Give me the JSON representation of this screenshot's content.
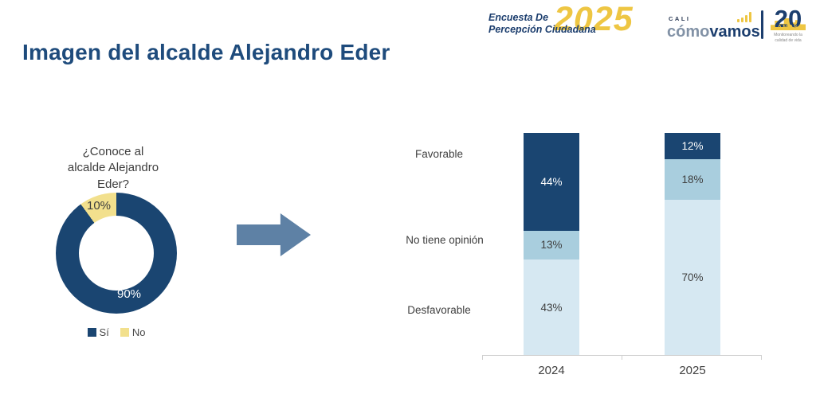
{
  "header": {
    "title": "Imagen del alcalde Alejandro Eder",
    "encuesta_logo": {
      "line1": "Encuesta De",
      "line2": "Percepción Ciudadana",
      "year": "2025"
    },
    "ccv_logo": {
      "city": "CALI",
      "word1": "cómo",
      "word2": "vamos",
      "icon": "bar-chart-icon"
    },
    "anniversary_logo": {
      "number": "20",
      "label": "AÑOS",
      "tagline_line1": "Monitoreando la",
      "tagline_line2": "calidad de vida"
    }
  },
  "donut": {
    "question_line1": "¿Conoce al",
    "question_line2": "alcalde Alejandro",
    "question_line3": "Eder?",
    "si_label": "90%",
    "no_label": "10%"
  },
  "chart_data": [
    {
      "type": "pie",
      "subtype": "donut",
      "title": "¿Conoce al alcalde Alejandro Eder?",
      "labels": [
        "Sí",
        "No"
      ],
      "values": [
        90,
        10
      ],
      "unit": "%",
      "colors": [
        "#1a4571",
        "#f2e08d"
      ],
      "legend_position": "bottom",
      "start_angle_deg": 0,
      "direction": "clockwise"
    },
    {
      "type": "bar",
      "subtype": "stacked-column",
      "title": "Imagen del alcalde Alejandro Eder",
      "categories": [
        "2024",
        "2025"
      ],
      "series": [
        {
          "name": "Favorable",
          "values": [
            44,
            12
          ],
          "color": "#1a4571",
          "label_color": "#ffffff"
        },
        {
          "name": "No tiene opinión",
          "values": [
            13,
            18
          ],
          "color": "#a9cede",
          "label_color": "#3f3f3f"
        },
        {
          "name": "Desfavorable",
          "values": [
            43,
            70
          ],
          "color": "#d6e8f2",
          "label_color": "#3f3f3f"
        }
      ],
      "unit": "%",
      "ylim": [
        0,
        100
      ],
      "value_labels": true,
      "stack_order_top_to_bottom": [
        "Favorable",
        "No tiene opinión",
        "Desfavorable"
      ],
      "legend": false,
      "grid": false
    }
  ],
  "colors": {
    "title": "#1e4b7c",
    "logo_navy": "#1c3e6e",
    "logo_yellow": "#eec643",
    "navy": "#1a4571",
    "medium_blue": "#a9cede",
    "light_blue": "#d6e8f2",
    "pale_yellow": "#f2e08d",
    "arrow": "#5e81a5",
    "text": "#3f3f3f",
    "axis": "#d0d0d0",
    "background": "#ffffff"
  }
}
